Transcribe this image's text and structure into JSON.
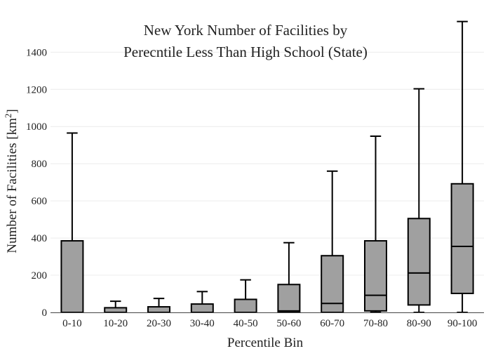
{
  "chart_data": {
    "type": "box",
    "title_lines": [
      "New York Number of Facilities by",
      "Perecntile Less Than High School (State)"
    ],
    "xlabel": "Percentile Bin",
    "ylabel": "Number of Facilities  [km",
    "ylabel_sup": "2",
    "ylabel_close": "]",
    "ylim": [
      0,
      1575
    ],
    "yticks": [
      "0",
      "200",
      "400",
      "600",
      "800",
      "1000",
      "1200",
      "1400"
    ],
    "ytick_values": [
      0,
      200,
      400,
      600,
      800,
      1000,
      1200,
      1400
    ],
    "grid": true,
    "categories": [
      "0-10",
      "10-20",
      "20-30",
      "30-40",
      "40-50",
      "50-60",
      "60-70",
      "70-80",
      "80-90",
      "90-100"
    ],
    "boxes": [
      {
        "min": 0,
        "q1": 0,
        "median": 0,
        "q3": 385,
        "max": 965
      },
      {
        "min": 0,
        "q1": 0,
        "median": 0,
        "q3": 25,
        "max": 60
      },
      {
        "min": 0,
        "q1": 0,
        "median": 0,
        "q3": 30,
        "max": 75
      },
      {
        "min": 0,
        "q1": 0,
        "median": 0,
        "q3": 45,
        "max": 112
      },
      {
        "min": 0,
        "q1": 0,
        "median": 0,
        "q3": 70,
        "max": 175
      },
      {
        "min": 0,
        "q1": 0,
        "median": 8,
        "q3": 150,
        "max": 375
      },
      {
        "min": 0,
        "q1": 0,
        "median": 48,
        "q3": 305,
        "max": 760
      },
      {
        "min": 0,
        "q1": 8,
        "median": 92,
        "q3": 385,
        "max": 948
      },
      {
        "min": 0,
        "q1": 40,
        "median": 212,
        "q3": 505,
        "max": 1203
      },
      {
        "min": 0,
        "q1": 102,
        "median": 355,
        "q3": 692,
        "max": 1565
      }
    ]
  }
}
